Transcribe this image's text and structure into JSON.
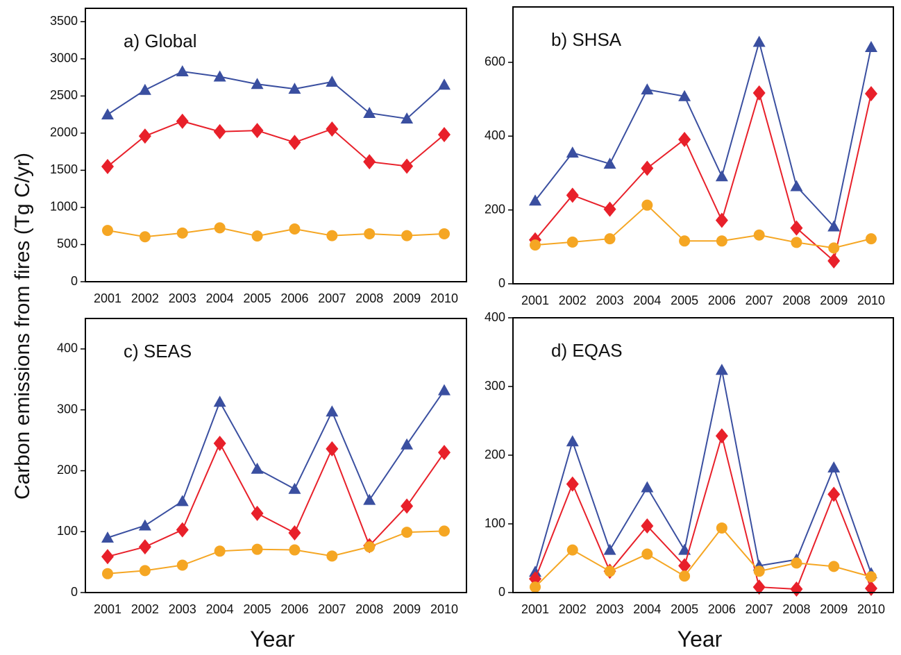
{
  "ylabel": "Carbon emissions from fires (Tg C/yr)",
  "chart_data": [
    {
      "type": "line",
      "title": "a) Global",
      "categories": [
        "2001",
        "2002",
        "2003",
        "2004",
        "2005",
        "2006",
        "2007",
        "2008",
        "2009",
        "2010"
      ],
      "ylim": [
        0,
        3680
      ],
      "yticks": [
        0,
        500,
        1000,
        1500,
        2000,
        2500,
        3000,
        3500
      ],
      "series": [
        {
          "color": "#3a4fa0",
          "marker": "triangle",
          "values": [
            2250,
            2580,
            2830,
            2760,
            2660,
            2595,
            2690,
            2270,
            2195,
            2650
          ]
        },
        {
          "color": "#e8202a",
          "marker": "diamond",
          "values": [
            1550,
            1960,
            2160,
            2020,
            2035,
            1875,
            2055,
            1615,
            1555,
            1980
          ]
        },
        {
          "color": "#f5a623",
          "marker": "circle",
          "values": [
            690,
            605,
            655,
            725,
            615,
            710,
            620,
            645,
            620,
            645
          ]
        }
      ]
    },
    {
      "type": "line",
      "title": "b) SHSA",
      "categories": [
        "2001",
        "2002",
        "2003",
        "2004",
        "2005",
        "2006",
        "2007",
        "2008",
        "2009",
        "2010"
      ],
      "ylim": [
        0,
        750
      ],
      "yticks": [
        0,
        200,
        400,
        600
      ],
      "series": [
        {
          "color": "#3a4fa0",
          "marker": "triangle",
          "values": [
            225,
            355,
            325,
            526,
            508,
            291,
            655,
            264,
            155,
            641
          ]
        },
        {
          "color": "#e8202a",
          "marker": "diamond",
          "values": [
            119,
            240,
            202,
            313,
            391,
            172,
            517,
            151,
            62,
            515
          ]
        },
        {
          "color": "#f5a623",
          "marker": "circle",
          "values": [
            105,
            113,
            122,
            213,
            116,
            116,
            132,
            112,
            97,
            122
          ]
        }
      ]
    },
    {
      "type": "line",
      "title": "c) SEAS",
      "xlabel": "Year",
      "categories": [
        "2001",
        "2002",
        "2003",
        "2004",
        "2005",
        "2006",
        "2007",
        "2008",
        "2009",
        "2010"
      ],
      "ylim": [
        0,
        450
      ],
      "yticks": [
        0,
        100,
        200,
        300,
        400
      ],
      "series": [
        {
          "color": "#3a4fa0",
          "marker": "triangle",
          "values": [
            90,
            110,
            150,
            313,
            203,
            170,
            297,
            152,
            243,
            332
          ]
        },
        {
          "color": "#e8202a",
          "marker": "diamond",
          "values": [
            59,
            75,
            103,
            245,
            130,
            98,
            236,
            77,
            142,
            230
          ]
        },
        {
          "color": "#f5a623",
          "marker": "circle",
          "values": [
            31,
            36,
            45,
            68,
            71,
            70,
            60,
            75,
            99,
            101
          ]
        }
      ]
    },
    {
      "type": "line",
      "title": "d) EQAS",
      "xlabel": "Year",
      "categories": [
        "2001",
        "2002",
        "2003",
        "2004",
        "2005",
        "2006",
        "2007",
        "2008",
        "2009",
        "2010"
      ],
      "ylim": [
        0,
        400
      ],
      "yticks": [
        0,
        100,
        200,
        300,
        400
      ],
      "series": [
        {
          "color": "#3a4fa0",
          "marker": "triangle",
          "values": [
            30,
            220,
            62,
            153,
            62,
            324,
            39,
            48,
            182,
            28
          ]
        },
        {
          "color": "#e8202a",
          "marker": "diamond",
          "values": [
            20,
            158,
            31,
            97,
            39,
            228,
            8,
            5,
            143,
            6
          ]
        },
        {
          "color": "#f5a623",
          "marker": "circle",
          "values": [
            8,
            62,
            31,
            56,
            24,
            94,
            31,
            43,
            38,
            23
          ]
        }
      ]
    }
  ]
}
